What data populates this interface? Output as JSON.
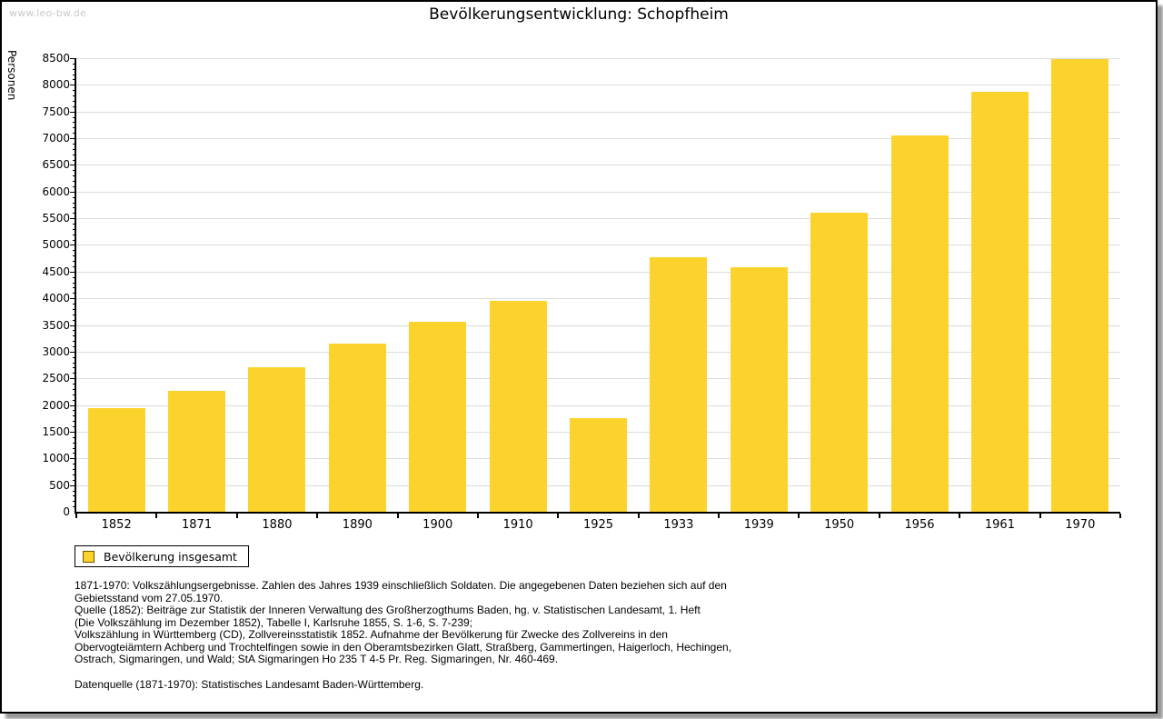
{
  "watermark": "www.leo-bw.de",
  "title": "Bevölkerungsentwicklung: Schopfheim",
  "chart_data": {
    "type": "bar",
    "title": "Bevölkerungsentwicklung: Schopfheim",
    "xlabel": "",
    "ylabel": "Personen",
    "ylim": [
      0,
      8500
    ],
    "ytick_step": 500,
    "yminor_step": 100,
    "grid": true,
    "bar_color": "#fcd32d",
    "gridline_color": "#dcdcdc",
    "legend_position": "below-left",
    "categories": [
      "1852",
      "1871",
      "1880",
      "1890",
      "1900",
      "1910",
      "1925",
      "1933",
      "1939",
      "1950",
      "1956",
      "1961",
      "1970"
    ],
    "series": [
      {
        "name": "Bevölkerung insgesamt",
        "values": [
          1942,
          2272,
          2708,
          3155,
          3560,
          3950,
          1752,
          4773,
          4585,
          5596,
          7050,
          7865,
          8484
        ]
      }
    ]
  },
  "legend": {
    "label": "Bevölkerung insgesamt",
    "swatch_color": "#fcd32d"
  },
  "footnotes": {
    "lines": [
      "1871-1970: Volkszählungsergebnisse. Zahlen des Jahres 1939 einschließlich Soldaten. Die angegebenen Daten beziehen sich auf den",
      "Gebietsstand vom 27.05.1970.",
      "Quelle (1852): Beiträge zur Statistik der Inneren Verwaltung des Großherzogthums Baden, hg. v. Statistischen Landesamt, 1. Heft",
      "(Die Volkszählung im Dezember 1852), Tabelle I, Karlsruhe 1855, S. 1-6, S. 7-239;",
      "Volkszählung in Württemberg (CD), Zollvereinsstatistik 1852. Aufnahme der Bevölkerung für Zwecke des Zollvereins in den",
      "Obervogteiämtern Achberg und Trochtelfingen sowie in den Oberamtsbezirken Glatt, Straßberg, Gammertingen, Haigerloch, Hechingen,",
      "Ostrach, Sigmaringen, und Wald; StA Sigmaringen Ho 235 T 4-5 Pr. Reg. Sigmaringen, Nr. 460-469."
    ],
    "datasource": "Datenquelle (1871-1970): Statistisches Landesamt Baden-Württemberg."
  }
}
